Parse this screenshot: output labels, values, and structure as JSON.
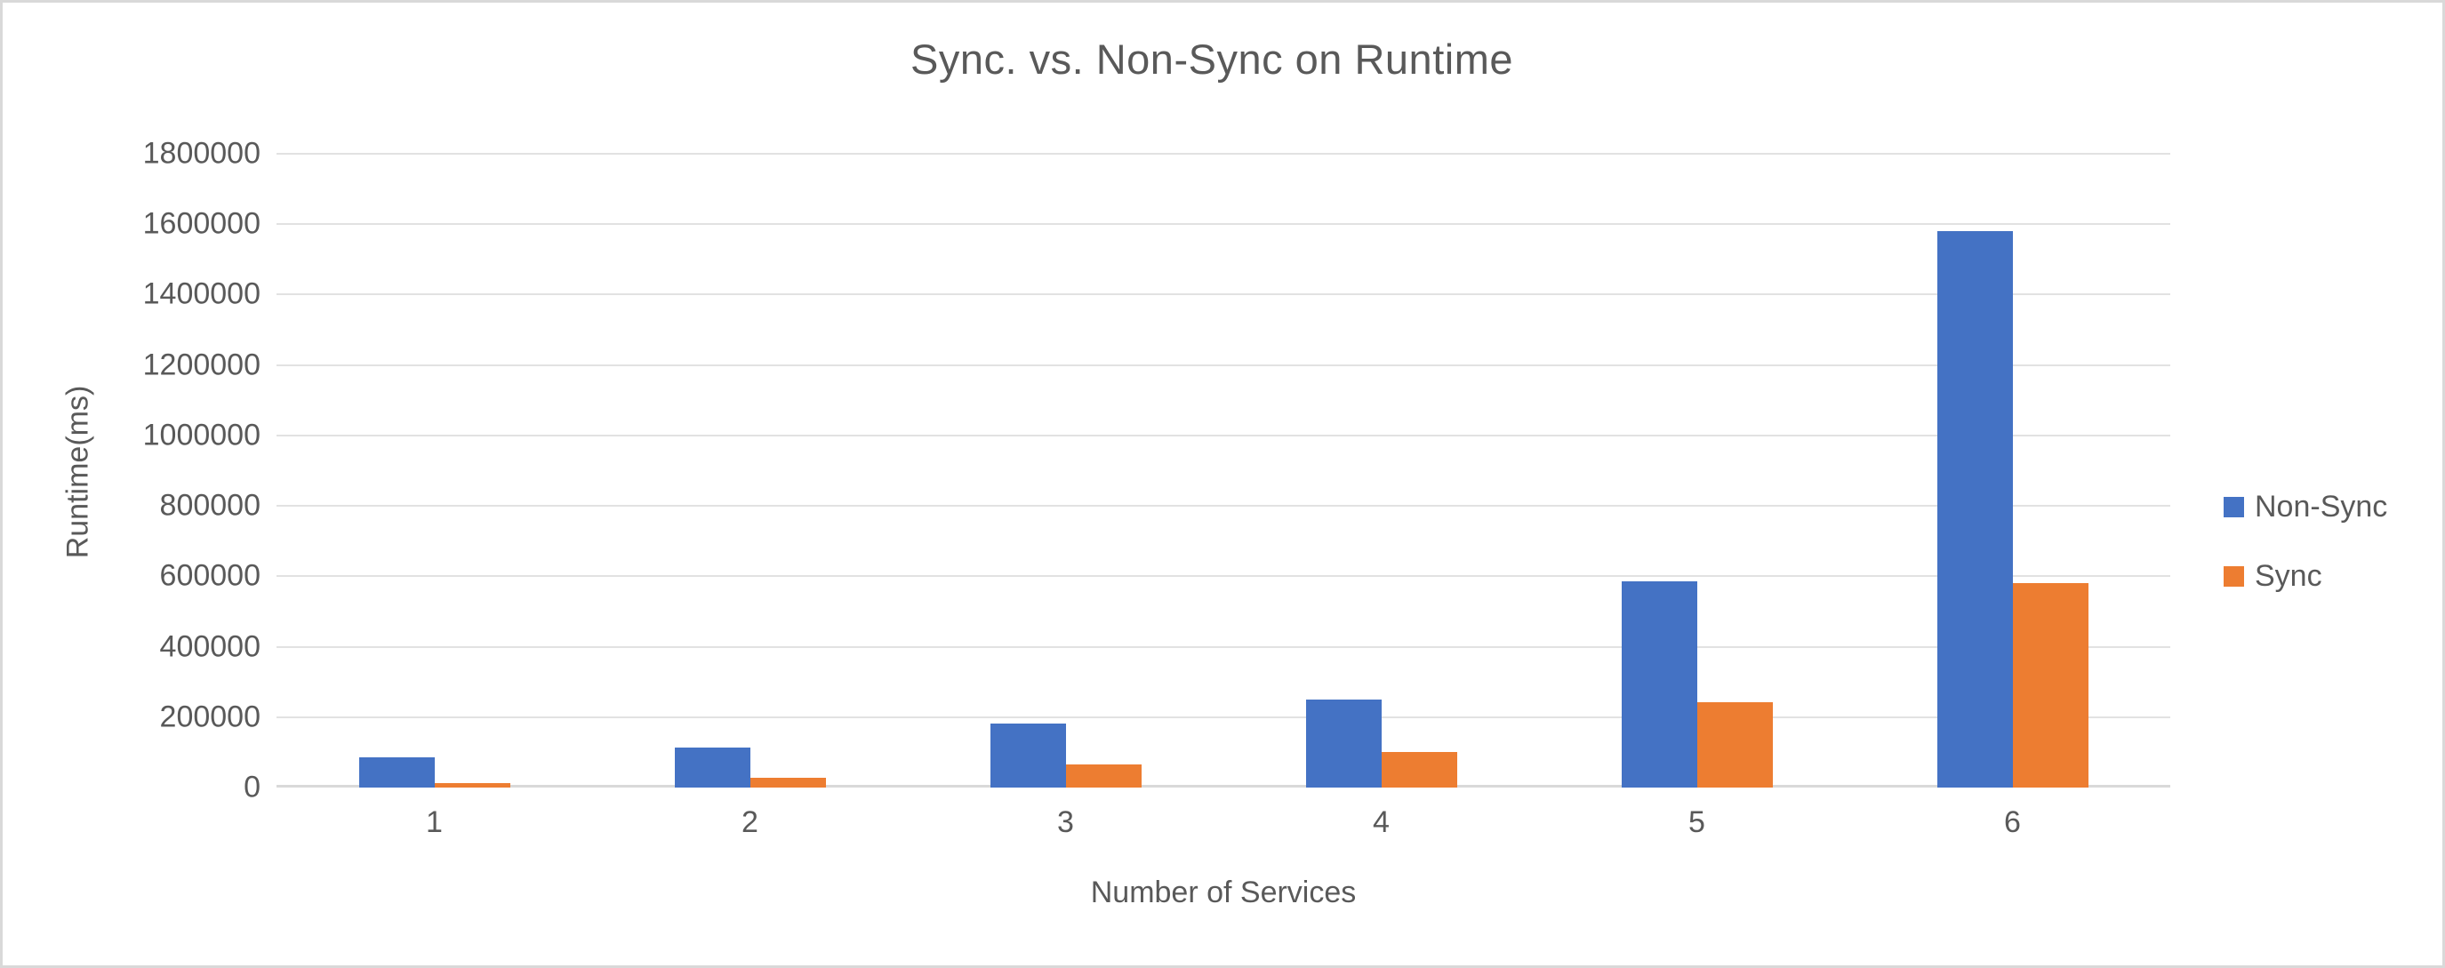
{
  "chart_data": {
    "type": "bar",
    "title": "Sync. vs. Non-Sync on Runtime",
    "xlabel": "Number of Services",
    "ylabel": "Runtime(ms)",
    "categories": [
      "1",
      "2",
      "3",
      "4",
      "5",
      "6"
    ],
    "series": [
      {
        "name": "Non-Sync",
        "color": "#4472C4",
        "values": [
          86000,
          113000,
          183000,
          250000,
          586000,
          1580000
        ]
      },
      {
        "name": "Sync",
        "color": "#ED7D31",
        "values": [
          13000,
          28000,
          65000,
          100000,
          242000,
          580000
        ]
      }
    ],
    "ylim": [
      0,
      1800000
    ],
    "ytick_step": 200000,
    "ytick_labels": [
      "0",
      "200000",
      "400000",
      "600000",
      "800000",
      "1000000",
      "1200000",
      "1400000",
      "1600000",
      "1800000"
    ],
    "grid": true,
    "legend_position": "right"
  },
  "appearance": {
    "text_color": "#595959",
    "gridline_color": "#E2E2E2",
    "axis_line_color": "#D9D9D9",
    "frame_color": "#D9D9D9",
    "background_color": "#FFFFFF"
  }
}
